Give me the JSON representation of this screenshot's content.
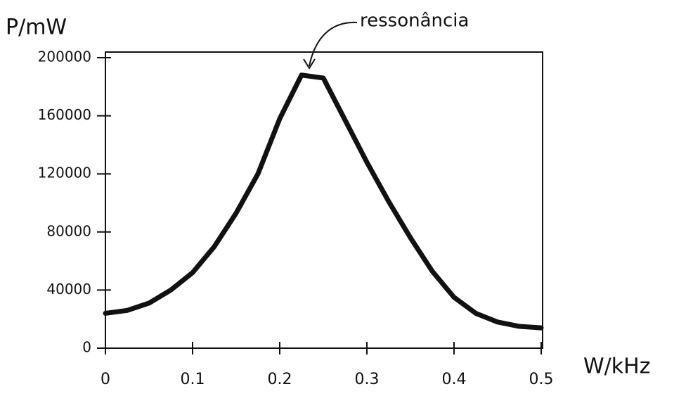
{
  "chart_data": {
    "type": "line",
    "y_label": "P/mW",
    "x_label": "W/kHz",
    "annotation": "ressonância",
    "x": [
      0,
      0.025,
      0.05,
      0.075,
      0.1,
      0.125,
      0.15,
      0.175,
      0.2,
      0.225,
      0.25,
      0.275,
      0.3,
      0.325,
      0.35,
      0.375,
      0.4,
      0.425,
      0.45,
      0.475,
      0.5
    ],
    "series": [
      {
        "color": "#111111",
        "values": [
          24000,
          26000,
          31000,
          40000,
          52000,
          70000,
          93000,
          120000,
          158000,
          188000,
          186000,
          157000,
          128000,
          101000,
          76000,
          53000,
          35000,
          24000,
          18000,
          15000,
          14000
        ]
      }
    ],
    "xlim": [
      0,
      0.5
    ],
    "xticks": [
      0,
      0.1,
      0.2,
      0.3,
      0.4,
      0.5
    ],
    "ylim": [
      0,
      200000
    ],
    "yticks": [
      0,
      40000,
      80000,
      120000,
      160000,
      200000
    ]
  }
}
